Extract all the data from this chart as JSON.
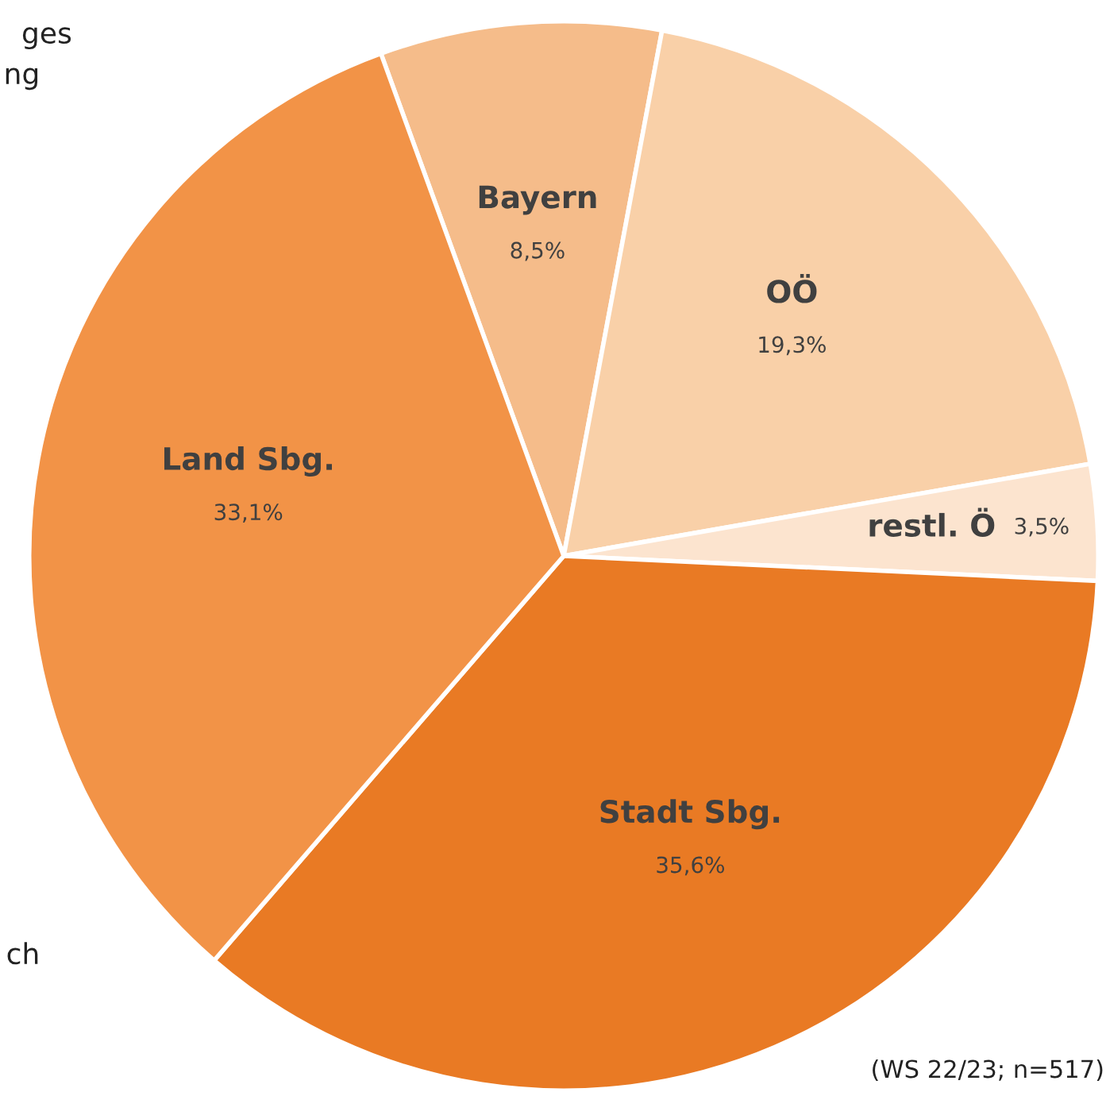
{
  "chart_data": {
    "type": "pie",
    "categories": [
      "Bayern",
      "OÖ",
      "restl. Ö",
      "Stadt Sbg.",
      "Land Sbg."
    ],
    "values": [
      8.5,
      19.3,
      3.5,
      35.6,
      33.1
    ],
    "value_labels": [
      "8,5%",
      "19,3%",
      "3,5%",
      "35,6%",
      "33,1%"
    ],
    "colors": [
      "#f5bc8a",
      "#f9d0a8",
      "#fce4cf",
      "#e97a24",
      "#f29347"
    ],
    "annotations": [
      "ges",
      "ng",
      "ch",
      "(WS 22/23; n=517)"
    ],
    "legend": false
  }
}
